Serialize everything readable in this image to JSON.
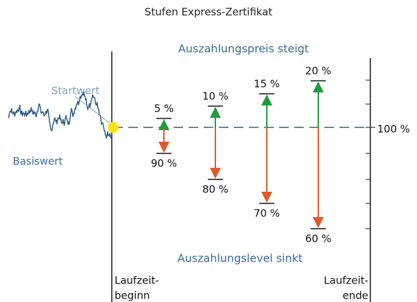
{
  "title": "Stufen Express-Zertifikat",
  "top_label": "Auszahlungspreis steigt",
  "bottom_label": "Auszahlungslevel sinkt",
  "start_label": "Startwert",
  "underlying_label": "Basiswert",
  "reference_label": "100 %",
  "start_period": [
    "Laufzeit-",
    "beginn"
  ],
  "end_period": [
    "Laufzeit-",
    "ende"
  ],
  "steps": [
    {
      "up": "5 %",
      "down": "90 %"
    },
    {
      "up": "10 %",
      "down": "80 %"
    },
    {
      "up": "15 %",
      "down": "70 %"
    },
    {
      "up": "20 %",
      "down": "60 %"
    }
  ]
}
